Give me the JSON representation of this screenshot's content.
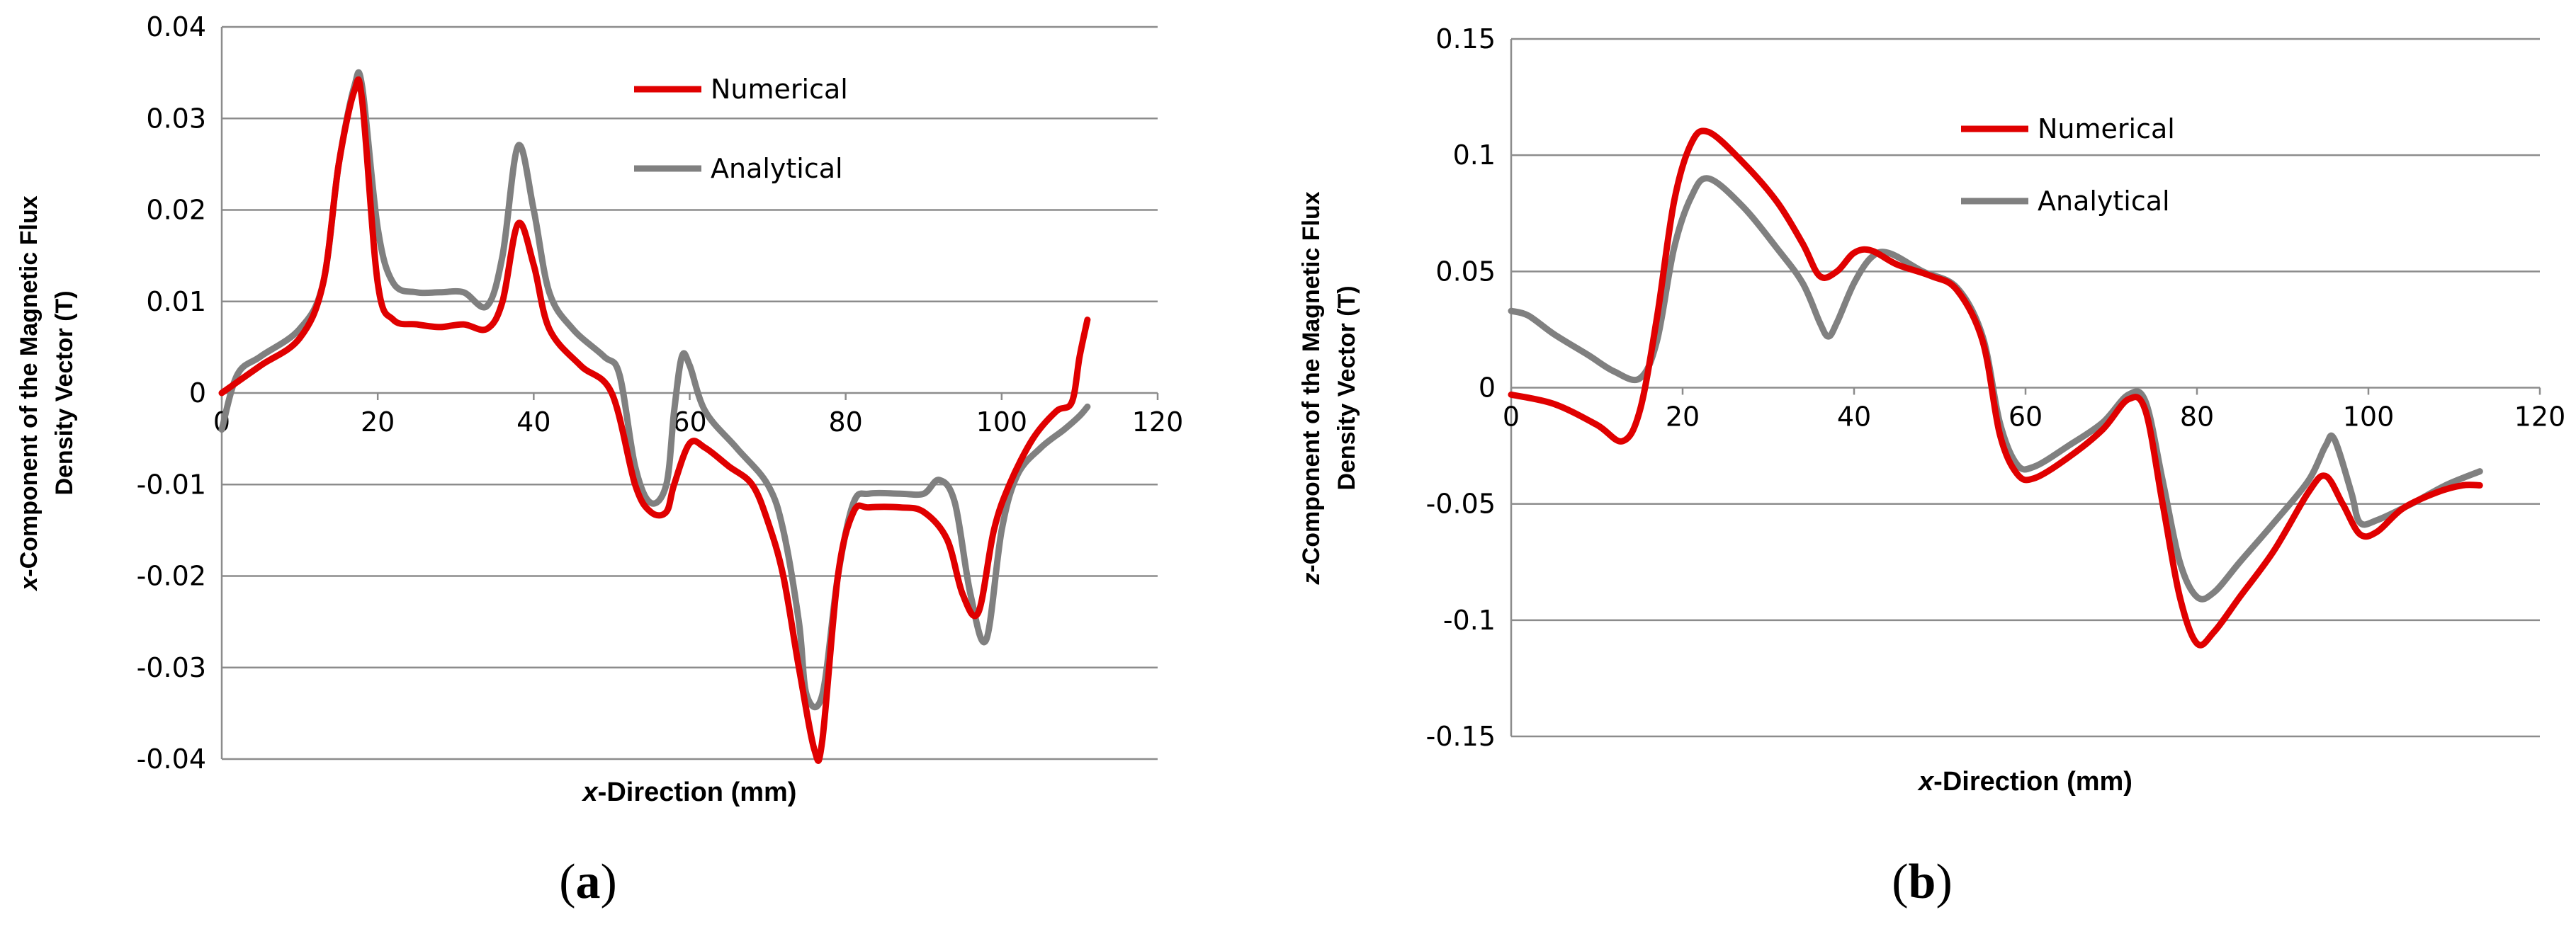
{
  "chart_data": [
    {
      "panel": "(a)",
      "type": "line",
      "ylabel_lines": [
        "x-Component of the Magnetic Flux",
        "Density Vector (T)"
      ],
      "xlabel": "x-Direction (mm)",
      "xlim": [
        0,
        120
      ],
      "ylim": [
        -0.04,
        0.04
      ],
      "xticks": [
        0,
        20,
        40,
        60,
        80,
        100,
        120
      ],
      "yticks": [
        0.04,
        0.03,
        0.02,
        0.01,
        0,
        -0.01,
        -0.02,
        -0.03,
        -0.04
      ],
      "grid": true,
      "legend_position": "top-right",
      "series": [
        {
          "name": "Numerical",
          "color": "#e00000",
          "points": [
            [
              0,
              0
            ],
            [
              5,
              0.003
            ],
            [
              10,
              0.006
            ],
            [
              13,
              0.012
            ],
            [
              15,
              0.025
            ],
            [
              17,
              0.033
            ],
            [
              18,
              0.032
            ],
            [
              20,
              0.012
            ],
            [
              22,
              0.008
            ],
            [
              25,
              0.0075
            ],
            [
              28,
              0.0072
            ],
            [
              31,
              0.0075
            ],
            [
              34,
              0.007
            ],
            [
              36,
              0.01
            ],
            [
              38,
              0.0185
            ],
            [
              40,
              0.014
            ],
            [
              42,
              0.007
            ],
            [
              46,
              0.003
            ],
            [
              50,
              0
            ],
            [
              53,
              -0.01
            ],
            [
              55,
              -0.013
            ],
            [
              57,
              -0.013
            ],
            [
              58,
              -0.01
            ],
            [
              60,
              -0.0055
            ],
            [
              62,
              -0.006
            ],
            [
              65,
              -0.008
            ],
            [
              68,
              -0.01
            ],
            [
              70,
              -0.014
            ],
            [
              72,
              -0.02
            ],
            [
              74,
              -0.03
            ],
            [
              76,
              -0.039
            ],
            [
              77,
              -0.038
            ],
            [
              79,
              -0.02
            ],
            [
              81,
              -0.013
            ],
            [
              83,
              -0.0125
            ],
            [
              87,
              -0.0125
            ],
            [
              90,
              -0.013
            ],
            [
              93,
              -0.016
            ],
            [
              95,
              -0.022
            ],
            [
              97,
              -0.024
            ],
            [
              99,
              -0.015
            ],
            [
              101,
              -0.01
            ],
            [
              104,
              -0.005
            ],
            [
              107,
              -0.002
            ],
            [
              109,
              -0.001
            ],
            [
              110,
              0.004
            ],
            [
              111,
              0.008
            ]
          ]
        },
        {
          "name": "Analytical",
          "color": "#808080",
          "points": [
            [
              0,
              -0.004
            ],
            [
              2,
              0.002
            ],
            [
              5,
              0.004
            ],
            [
              10,
              0.007
            ],
            [
              13,
              0.012
            ],
            [
              15,
              0.025
            ],
            [
              17,
              0.0335
            ],
            [
              18,
              0.0335
            ],
            [
              20,
              0.018
            ],
            [
              22,
              0.012
            ],
            [
              25,
              0.011
            ],
            [
              28,
              0.011
            ],
            [
              31,
              0.011
            ],
            [
              34,
              0.0095
            ],
            [
              36,
              0.015
            ],
            [
              38,
              0.027
            ],
            [
              40,
              0.02
            ],
            [
              42,
              0.011
            ],
            [
              45,
              0.007
            ],
            [
              49,
              0.004
            ],
            [
              51,
              0.002
            ],
            [
              53,
              -0.008
            ],
            [
              55,
              -0.012
            ],
            [
              57,
              -0.01
            ],
            [
              58,
              -0.002
            ],
            [
              59,
              0.004
            ],
            [
              60,
              0.003
            ],
            [
              62,
              -0.002
            ],
            [
              66,
              -0.006
            ],
            [
              70,
              -0.01
            ],
            [
              72,
              -0.015
            ],
            [
              74,
              -0.025
            ],
            [
              75,
              -0.033
            ],
            [
              77,
              -0.033
            ],
            [
              79,
              -0.02
            ],
            [
              81,
              -0.012
            ],
            [
              83,
              -0.011
            ],
            [
              87,
              -0.011
            ],
            [
              90,
              -0.011
            ],
            [
              92,
              -0.0095
            ],
            [
              94,
              -0.012
            ],
            [
              96,
              -0.022
            ],
            [
              98,
              -0.027
            ],
            [
              100,
              -0.015
            ],
            [
              102,
              -0.009
            ],
            [
              105,
              -0.006
            ],
            [
              108,
              -0.004
            ],
            [
              110,
              -0.0025
            ],
            [
              111,
              -0.0015
            ]
          ]
        }
      ]
    },
    {
      "panel": "(b)",
      "type": "line",
      "ylabel_lines": [
        "z-Component of the Magnetic Flux",
        "Density Vector (T)"
      ],
      "xlabel": "x-Direction (mm)",
      "xlim": [
        0,
        120
      ],
      "ylim": [
        -0.15,
        0.15
      ],
      "xticks": [
        0,
        20,
        40,
        60,
        80,
        100,
        120
      ],
      "yticks": [
        0.15,
        0.1,
        0.05,
        0,
        -0.05,
        -0.1,
        -0.15
      ],
      "grid": true,
      "legend_position": "top-right",
      "series": [
        {
          "name": "Numerical",
          "color": "#e00000",
          "points": [
            [
              0,
              -0.003
            ],
            [
              5,
              -0.007
            ],
            [
              10,
              -0.016
            ],
            [
              13,
              -0.023
            ],
            [
              15,
              -0.01
            ],
            [
              17,
              0.03
            ],
            [
              19,
              0.08
            ],
            [
              21,
              0.105
            ],
            [
              23,
              0.11
            ],
            [
              27,
              0.097
            ],
            [
              31,
              0.08
            ],
            [
              34,
              0.062
            ],
            [
              36,
              0.048
            ],
            [
              38,
              0.05
            ],
            [
              40,
              0.058
            ],
            [
              42,
              0.059
            ],
            [
              45,
              0.053
            ],
            [
              49,
              0.048
            ],
            [
              52,
              0.042
            ],
            [
              55,
              0.02
            ],
            [
              57,
              -0.02
            ],
            [
              59,
              -0.037
            ],
            [
              61,
              -0.039
            ],
            [
              65,
              -0.03
            ],
            [
              69,
              -0.018
            ],
            [
              72,
              -0.005
            ],
            [
              74,
              -0.01
            ],
            [
              76,
              -0.05
            ],
            [
              78,
              -0.09
            ],
            [
              80,
              -0.11
            ],
            [
              82,
              -0.105
            ],
            [
              85,
              -0.09
            ],
            [
              89,
              -0.07
            ],
            [
              93,
              -0.045
            ],
            [
              95,
              -0.038
            ],
            [
              97,
              -0.05
            ],
            [
              99,
              -0.063
            ],
            [
              101,
              -0.062
            ],
            [
              104,
              -0.052
            ],
            [
              108,
              -0.045
            ],
            [
              111,
              -0.042
            ],
            [
              113,
              -0.042
            ]
          ]
        },
        {
          "name": "Analytical",
          "color": "#808080",
          "points": [
            [
              0,
              0.033
            ],
            [
              2,
              0.031
            ],
            [
              5,
              0.023
            ],
            [
              9,
              0.014
            ],
            [
              12,
              0.007
            ],
            [
              15,
              0.004
            ],
            [
              17,
              0.02
            ],
            [
              19,
              0.06
            ],
            [
              21,
              0.082
            ],
            [
              23,
              0.09
            ],
            [
              27,
              0.078
            ],
            [
              31,
              0.06
            ],
            [
              34,
              0.045
            ],
            [
              36,
              0.028
            ],
            [
              37,
              0.022
            ],
            [
              38,
              0.028
            ],
            [
              40,
              0.045
            ],
            [
              42,
              0.056
            ],
            [
              44,
              0.058
            ],
            [
              48,
              0.05
            ],
            [
              52,
              0.043
            ],
            [
              55,
              0.022
            ],
            [
              57,
              -0.015
            ],
            [
              59,
              -0.033
            ],
            [
              61,
              -0.034
            ],
            [
              65,
              -0.025
            ],
            [
              69,
              -0.015
            ],
            [
              72,
              -0.003
            ],
            [
              74,
              -0.006
            ],
            [
              76,
              -0.04
            ],
            [
              78,
              -0.075
            ],
            [
              80,
              -0.09
            ],
            [
              82,
              -0.088
            ],
            [
              85,
              -0.075
            ],
            [
              89,
              -0.058
            ],
            [
              93,
              -0.04
            ],
            [
              95,
              -0.025
            ],
            [
              96,
              -0.022
            ],
            [
              98,
              -0.045
            ],
            [
              99,
              -0.058
            ],
            [
              101,
              -0.057
            ],
            [
              105,
              -0.05
            ],
            [
              109,
              -0.042
            ],
            [
              113,
              -0.036
            ]
          ]
        }
      ]
    }
  ]
}
